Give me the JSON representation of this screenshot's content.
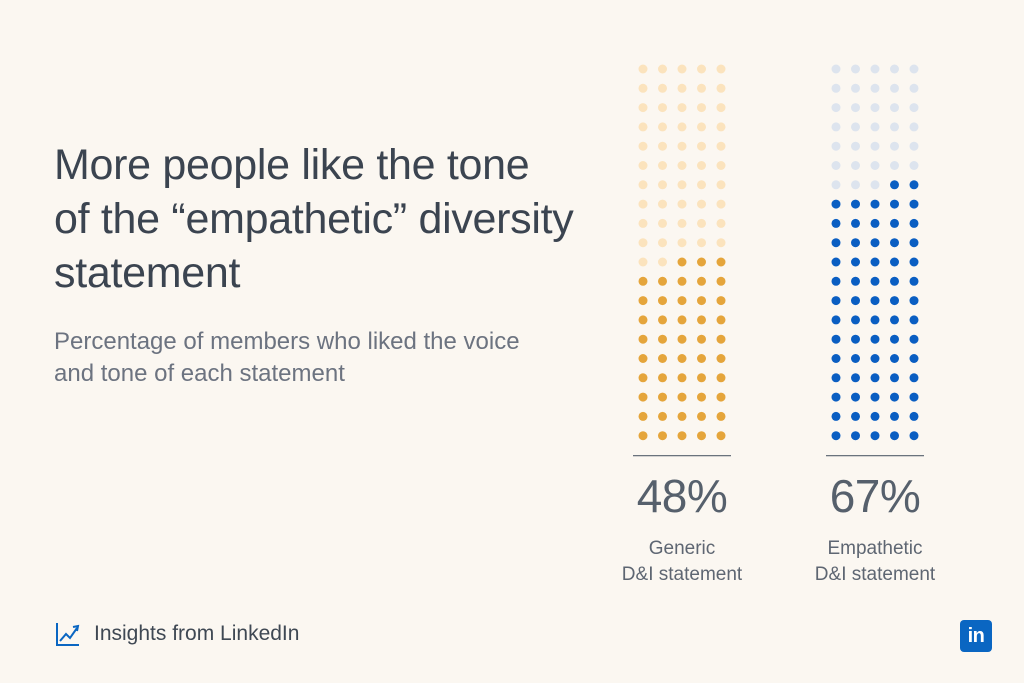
{
  "headline": "More people like the tone of the “empathetic” diversity statement",
  "subheadline": "Percentage of members who liked the voice and tone of each statement",
  "chart_data": {
    "type": "dot-grid",
    "series": [
      {
        "name": "Generic D&I statement",
        "value_label": "48%",
        "value": 48,
        "label_lines": [
          "Generic",
          "D&I statement"
        ],
        "color": "#e5a53b",
        "empty_color": "#fbe3bd"
      },
      {
        "name": "Empathetic D&I statement",
        "value_label": "67%",
        "value": 67,
        "label_lines": [
          "Empathetic",
          "D&I statement"
        ],
        "color": "#0a5ec2",
        "empty_color": "#dde4ee"
      }
    ],
    "grid": {
      "columns": 5,
      "rows": 20
    }
  },
  "footer": {
    "text": "Insights from LinkedIn",
    "icon": "trend-chart-icon"
  },
  "logo": {
    "text": "in",
    "color": "#0a66c2"
  }
}
